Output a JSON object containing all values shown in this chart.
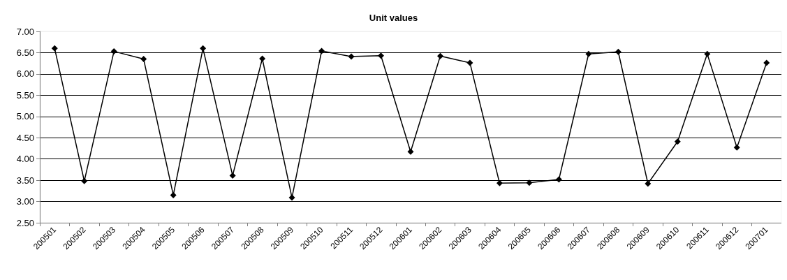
{
  "chart_data": {
    "type": "line",
    "title": "Unit values",
    "categories": [
      "200501",
      "200502",
      "200503",
      "200504",
      "200505",
      "200506",
      "200507",
      "200508",
      "200509",
      "200510",
      "200511",
      "200512",
      "200601",
      "200602",
      "200603",
      "200604",
      "200605",
      "200606",
      "200607",
      "200608",
      "200609",
      "200610",
      "200611",
      "200612",
      "200701"
    ],
    "values": [
      6.6,
      3.48,
      6.53,
      6.35,
      3.15,
      6.6,
      3.61,
      6.36,
      3.09,
      6.54,
      6.41,
      6.43,
      4.17,
      6.42,
      6.26,
      3.43,
      3.44,
      3.52,
      6.47,
      6.52,
      3.42,
      4.41,
      6.47,
      4.27,
      6.26
    ],
    "color": "#000000",
    "ylim": [
      2.5,
      7
    ],
    "yticks": [
      {
        "value": 2.5,
        "label": "2.50"
      },
      {
        "value": 3,
        "label": "3.00"
      },
      {
        "value": 3.5,
        "label": "3.50"
      },
      {
        "value": 4,
        "label": "4.00"
      },
      {
        "value": 4.5,
        "label": "4.50"
      },
      {
        "value": 5,
        "label": "5.00"
      },
      {
        "value": 5.5,
        "label": "5.50"
      },
      {
        "value": 6,
        "label": "6.00"
      },
      {
        "value": 6.5,
        "label": "6.50"
      },
      {
        "value": 7,
        "label": "7.00"
      }
    ],
    "grid": "y",
    "marker": "diamond",
    "line_style": "solid"
  }
}
